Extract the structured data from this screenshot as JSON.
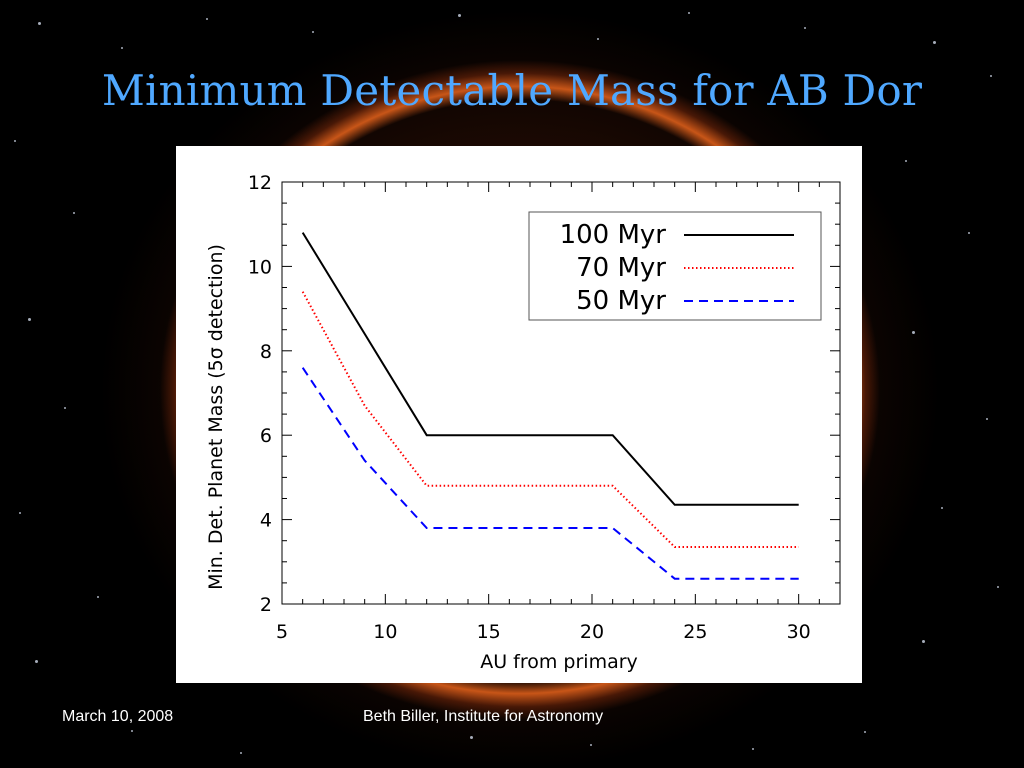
{
  "slide": {
    "title": "Minimum Detectable Mass for AB Dor",
    "footer_date": "March 10, 2008",
    "footer_author": "Beth Biller, Institute for Astronomy"
  },
  "colors": {
    "title": "#4fa8ff",
    "series_100": "#000000",
    "series_70": "#ff0000",
    "series_50": "#0000ff"
  },
  "chart_data": {
    "type": "line",
    "title": "",
    "xlabel": "AU from primary",
    "ylabel": "Min. Det. Planet Mass (5σ detection)",
    "xlim": [
      5,
      32
    ],
    "ylim": [
      2,
      12
    ],
    "xticks": [
      5,
      10,
      15,
      20,
      25,
      30
    ],
    "yticks": [
      2,
      4,
      6,
      8,
      10,
      12
    ],
    "legend_position": "top-right",
    "grid": false,
    "series": [
      {
        "name": "100 Myr",
        "style": "solid",
        "color": "#000000",
        "x": [
          6,
          9,
          12,
          21,
          24,
          30
        ],
        "y": [
          10.8,
          8.4,
          6.0,
          6.0,
          4.35,
          4.35
        ]
      },
      {
        "name": "70 Myr",
        "style": "dotted",
        "color": "#ff0000",
        "x": [
          6,
          9,
          12,
          21,
          24,
          30
        ],
        "y": [
          9.4,
          6.7,
          4.8,
          4.8,
          3.35,
          3.35
        ]
      },
      {
        "name": "50 Myr",
        "style": "dashed",
        "color": "#0000ff",
        "x": [
          6,
          9,
          12,
          21,
          24,
          30
        ],
        "y": [
          7.6,
          5.4,
          3.8,
          3.8,
          2.6,
          2.6
        ]
      }
    ]
  }
}
